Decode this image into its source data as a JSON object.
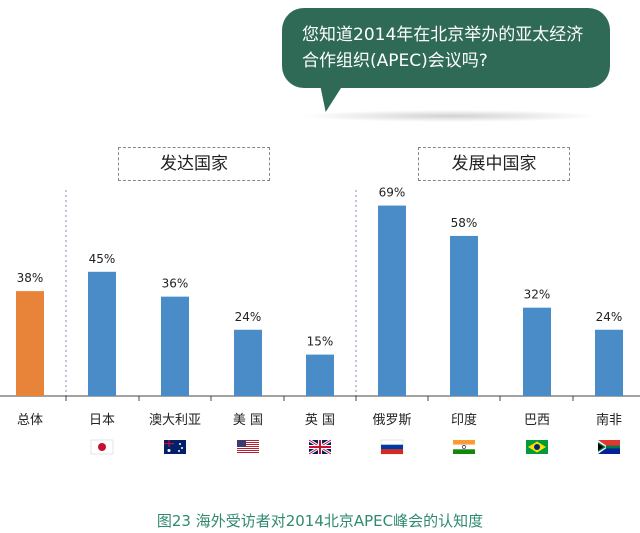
{
  "question": {
    "line1": "您知道2014年在北京举办的亚太经济",
    "line2": "合作组织(APEC)会议吗?"
  },
  "groups": {
    "developed": "发达国家",
    "developing": "发展中国家"
  },
  "caption": "图23   海外受访者对2014北京APEC峰会的认知度",
  "colors": {
    "total_bar": "#e8843a",
    "country_bar": "#4a8cc7",
    "bubble": "#2f6a57",
    "caption": "#2f8a6f"
  },
  "chart_data": {
    "type": "bar",
    "title": "",
    "xlabel": "",
    "ylabel": "",
    "ylim": [
      0,
      100
    ],
    "grid": false,
    "categories": [
      "总体",
      "日本",
      "澳大利亚",
      "美国",
      "英国",
      "俄罗斯",
      "印度",
      "巴西",
      "南非"
    ],
    "values": [
      38,
      45,
      36,
      24,
      15,
      69,
      58,
      32,
      24
    ],
    "labels": [
      "38%",
      "45%",
      "36%",
      "24%",
      "15%",
      "69%",
      "58%",
      "32%",
      "24%"
    ],
    "display_names": [
      "总体",
      "日本",
      "澳大利亚",
      "美 国",
      "英 国",
      "俄罗斯",
      "印度",
      "巴西",
      "南非"
    ],
    "flags": [
      "",
      "japan-flag-icon",
      "australia-flag-icon",
      "usa-flag-icon",
      "uk-flag-icon",
      "russia-flag-icon",
      "india-flag-icon",
      "brazil-flag-icon",
      "south-africa-flag-icon"
    ]
  }
}
